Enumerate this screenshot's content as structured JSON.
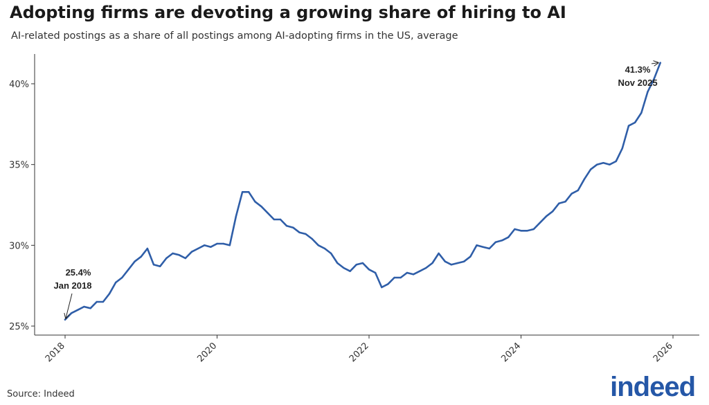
{
  "title": "Adopting firms are devoting a growing share of hiring to AI",
  "subtitle": "AI-related postings as a share of all postings among AI-adopting firms in the US, average",
  "source": "Source: Indeed",
  "logo_text": "indeed",
  "colors": {
    "line": "#2f5ea8",
    "axis": "#333333",
    "logo": "#2557a7"
  },
  "chart_data": {
    "type": "line",
    "title": "Adopting firms are devoting a growing share of hiring to AI",
    "subtitle": "AI-related postings as a share of all postings among AI-adopting firms in the US, average",
    "xlabel": "",
    "ylabel": "",
    "xlim": [
      "2017-07",
      "2026-01"
    ],
    "ylim": [
      25,
      42
    ],
    "y_ticks": [
      25,
      30,
      35,
      40
    ],
    "y_tick_labels": [
      "25%",
      "30%",
      "35%",
      "40%"
    ],
    "x_ticks": [
      "2018",
      "2020",
      "2022",
      "2024",
      "2026"
    ],
    "grid": false,
    "x": [
      "2018-01",
      "2018-02",
      "2018-03",
      "2018-04",
      "2018-05",
      "2018-06",
      "2018-07",
      "2018-08",
      "2018-09",
      "2018-10",
      "2018-11",
      "2018-12",
      "2019-01",
      "2019-02",
      "2019-03",
      "2019-04",
      "2019-05",
      "2019-06",
      "2019-07",
      "2019-08",
      "2019-09",
      "2019-10",
      "2019-11",
      "2019-12",
      "2020-01",
      "2020-02",
      "2020-03",
      "2020-04",
      "2020-05",
      "2020-06",
      "2020-07",
      "2020-08",
      "2020-09",
      "2020-10",
      "2020-11",
      "2020-12",
      "2021-01",
      "2021-02",
      "2021-03",
      "2021-04",
      "2021-05",
      "2021-06",
      "2021-07",
      "2021-08",
      "2021-09",
      "2021-10",
      "2021-11",
      "2021-12",
      "2022-01",
      "2022-02",
      "2022-03",
      "2022-04",
      "2022-05",
      "2022-06",
      "2022-07",
      "2022-08",
      "2022-09",
      "2022-10",
      "2022-11",
      "2022-12",
      "2023-01",
      "2023-02",
      "2023-03",
      "2023-04",
      "2023-05",
      "2023-06",
      "2023-07",
      "2023-08",
      "2023-09",
      "2023-10",
      "2023-11",
      "2023-12",
      "2024-01",
      "2024-02",
      "2024-03",
      "2024-04",
      "2024-05",
      "2024-06",
      "2024-07",
      "2024-08",
      "2024-09",
      "2024-10",
      "2024-11",
      "2024-12",
      "2025-01",
      "2025-02",
      "2025-03",
      "2025-04",
      "2025-05",
      "2025-06",
      "2025-07",
      "2025-08",
      "2025-09",
      "2025-10",
      "2025-11"
    ],
    "series": [
      {
        "values": [
          25.4,
          25.8,
          26.0,
          26.2,
          26.1,
          26.5,
          26.5,
          27.0,
          27.7,
          28.0,
          28.5,
          29.0,
          29.3,
          29.8,
          28.8,
          28.7,
          29.2,
          29.5,
          29.4,
          29.2,
          29.6,
          29.8,
          30.0,
          29.9,
          30.1,
          30.1,
          30.0,
          31.8,
          33.3,
          33.3,
          32.7,
          32.4,
          32.0,
          31.6,
          31.6,
          31.2,
          31.1,
          30.8,
          30.7,
          30.4,
          30.0,
          29.8,
          29.5,
          28.9,
          28.6,
          28.4,
          28.8,
          28.9,
          28.5,
          28.3,
          27.4,
          27.6,
          28.0,
          28.0,
          28.3,
          28.2,
          28.4,
          28.6,
          28.9,
          29.5,
          29.0,
          28.8,
          28.9,
          29.0,
          29.3,
          30.0,
          29.9,
          29.8,
          30.2,
          30.3,
          30.5,
          31.0,
          30.9,
          30.9,
          31.0,
          31.4,
          31.8,
          32.1,
          32.6,
          32.7,
          33.2,
          33.4,
          34.1,
          34.7,
          35.0,
          35.1,
          35.0,
          35.2,
          36.0,
          37.4,
          37.6,
          38.2,
          39.5,
          40.3,
          41.3
        ]
      }
    ],
    "annotations": [
      {
        "label_value": "25.4%",
        "label_date": "Jan 2018",
        "x": "2018-01",
        "y": 25.4
      },
      {
        "label_value": "41.3%",
        "label_date": "Nov 2025",
        "x": "2025-11",
        "y": 41.3
      }
    ]
  }
}
